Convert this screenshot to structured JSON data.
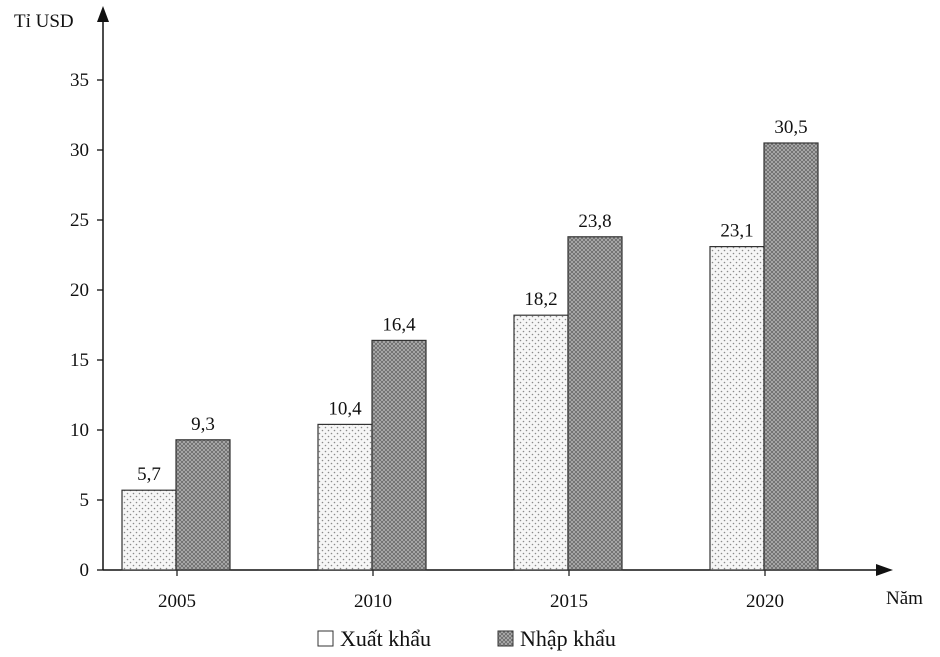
{
  "chart_data": {
    "type": "bar",
    "ylabel": "Tỉ USD",
    "xlabel": "Năm",
    "categories": [
      "2005",
      "2010",
      "2015",
      "2020"
    ],
    "series": [
      {
        "name": "Xuất khẩu",
        "values": [
          5.7,
          10.4,
          18.2,
          23.1
        ],
        "labels": [
          "5,7",
          "10,4",
          "18,2",
          "23,1"
        ],
        "pattern": "dots",
        "color": "#f4f4f4"
      },
      {
        "name": "Nhập khẩu",
        "values": [
          9.3,
          16.4,
          23.8,
          30.5
        ],
        "labels": [
          "9,3",
          "16,4",
          "23,8",
          "30,5"
        ],
        "pattern": "crosshatch",
        "color": "#9a9a9a"
      }
    ],
    "yticks": [
      0,
      5,
      10,
      15,
      20,
      25,
      30,
      35
    ],
    "ylim": [
      0,
      38
    ],
    "grid": false,
    "legend": "bottom-center"
  }
}
